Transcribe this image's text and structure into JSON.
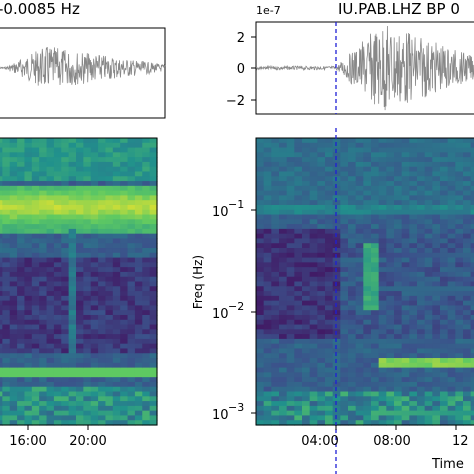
{
  "panel_titles": {
    "left": "-0.0085 Hz",
    "right": "IU.PAB.LHZ BP 0"
  },
  "chart_data": [
    {
      "type": "line",
      "name": "waveform-left",
      "title": "-0.0085 Hz",
      "envelope": {
        "start_frac": 0.06,
        "peak_frac": 0.3,
        "end_frac": 1.0
      },
      "color": "#888888"
    },
    {
      "type": "heatmap",
      "name": "spectrogram-left",
      "x_tick_labels": [
        "16:00",
        "20:00"
      ],
      "colormap": "viridis",
      "features": [
        {
          "kind": "horizontal-band",
          "y_frac": 0.24,
          "level": 0.75
        },
        {
          "kind": "horizontal-band",
          "y_frac": 0.8,
          "level": 0.7
        },
        {
          "kind": "vertical-band",
          "x_frac": 0.47,
          "level": 0.4
        }
      ]
    },
    {
      "type": "line",
      "name": "waveform-right",
      "title": "IU.PAB.LHZ BP 0",
      "scale_label": "1e-7",
      "yticks": [
        2,
        0,
        -2
      ],
      "ylim": [
        -3,
        3
      ],
      "envelope": {
        "start_frac": 0.35,
        "peak_frac": 0.55,
        "end_frac": 1.0
      },
      "event_marker_color": "#1f1fd6",
      "color": "#888888"
    },
    {
      "type": "heatmap",
      "name": "spectrogram-right",
      "ylabel": "Freq (Hz)",
      "yscale": "log",
      "ylim": [
        0.0008,
        0.5
      ],
      "ytick_values": [
        0.1,
        0.01,
        0.001
      ],
      "y_tick_labels": [
        {
          "base": "10",
          "exp": "−1"
        },
        {
          "base": "10",
          "exp": "−2"
        },
        {
          "base": "10",
          "exp": "−3"
        }
      ],
      "x_tick_labels": [
        "04:00",
        "08:00",
        "12"
      ],
      "xlabel": "Time",
      "colormap": "viridis",
      "event_marker_color": "#1f1fd6"
    }
  ]
}
